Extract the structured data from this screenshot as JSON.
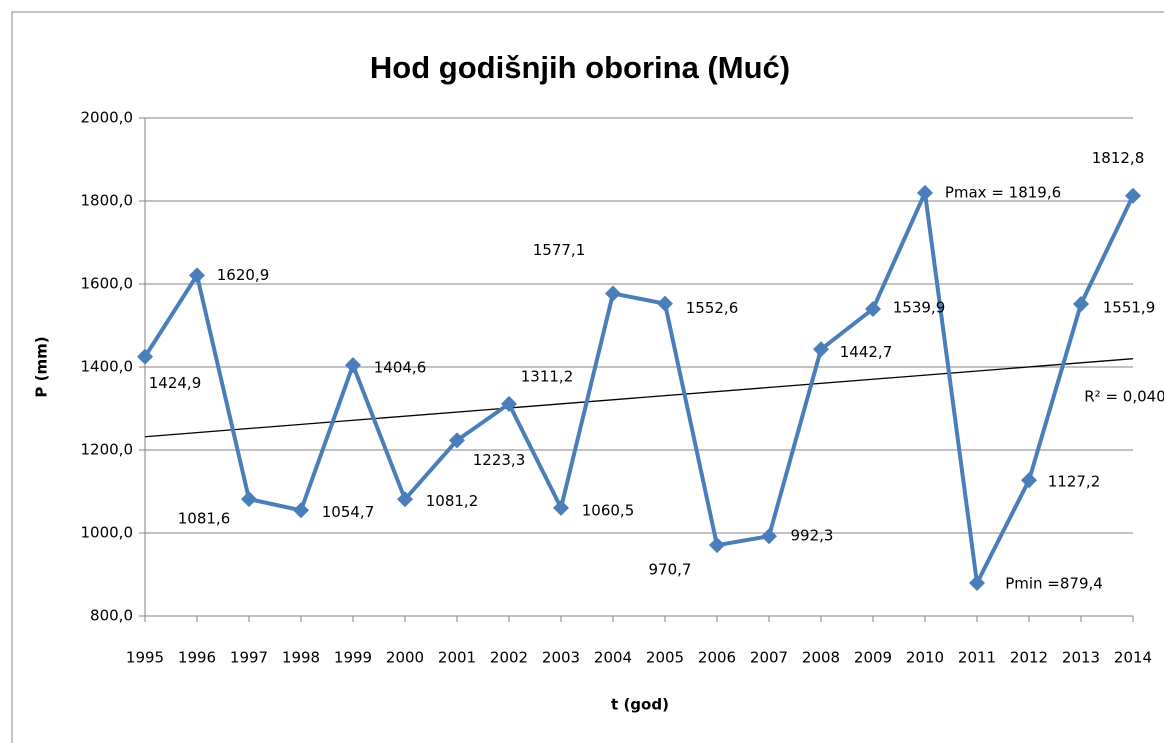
{
  "chart_data": {
    "type": "line",
    "title": "Hod godišnjih oborina (Muć)",
    "x_label": "t (god)",
    "y_label": "P (mm)",
    "categories": [
      "1995",
      "1996",
      "1997",
      "1998",
      "1999",
      "2000",
      "2001",
      "2002",
      "2003",
      "2004",
      "2005",
      "2006",
      "2007",
      "2008",
      "2009",
      "2010",
      "2011",
      "2012",
      "2013",
      "2014"
    ],
    "series": [
      {
        "name": "P",
        "color": "#4a7ebb",
        "values": [
          1424.9,
          1620.9,
          1081.6,
          1054.7,
          1404.6,
          1081.2,
          1223.3,
          1311.2,
          1060.5,
          1577.1,
          1552.6,
          970.7,
          992.3,
          1442.7,
          1539.9,
          1819.6,
          879.4,
          1127.2,
          1551.9,
          1812.8
        ],
        "value_labels": [
          "1424,9",
          "1620,9",
          "1081,6",
          "1054,7",
          "1404,6",
          "1081,2",
          "1223,3",
          "1311,2",
          "1060,5",
          "1577,1",
          "1552,6",
          "970,7",
          "992,3",
          "1442,7",
          "1539,9",
          "Pmax = 1819,6",
          "Pmin =879,4",
          "1127,2",
          "1551,9",
          "1812,8"
        ]
      }
    ],
    "trendline": {
      "values": [
        1232,
        1420
      ],
      "color": "#000000",
      "annotation": "R² = 0,040"
    },
    "ylim": [
      800,
      2000
    ],
    "yticks": [
      {
        "value": 800,
        "label": "800,0"
      },
      {
        "value": 1000,
        "label": "1000,0"
      },
      {
        "value": 1200,
        "label": "1200,0"
      },
      {
        "value": 1400,
        "label": "1400,0"
      },
      {
        "value": 1600,
        "label": "1600,0"
      },
      {
        "value": 1800,
        "label": "1800,0"
      },
      {
        "value": 2000,
        "label": "2000,0"
      }
    ],
    "grid": true
  }
}
